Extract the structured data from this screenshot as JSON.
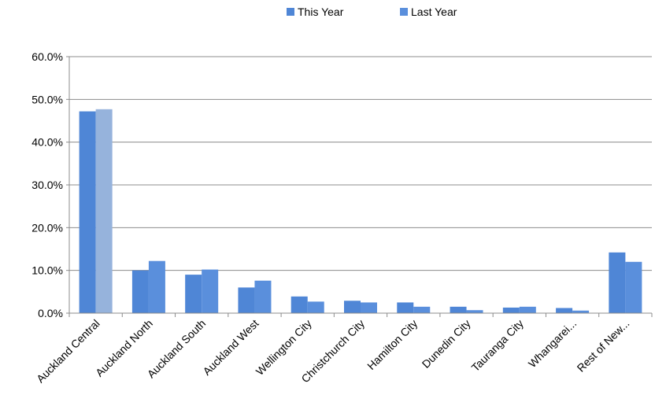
{
  "chart_data": {
    "type": "bar",
    "categories": [
      "Auckland Central",
      "Auckland North",
      "Auckland South",
      "Auckland West",
      "Wellington City",
      "Christchurch City",
      "Hamilton City",
      "Dunedin City",
      "Tauranga City",
      "Whangarei...",
      "Rest of New..."
    ],
    "series": [
      {
        "name": "This Year",
        "color": "#4f86d6",
        "values": [
          47.2,
          10.0,
          9.0,
          6.0,
          3.9,
          2.9,
          2.5,
          1.5,
          1.3,
          1.2,
          14.2
        ]
      },
      {
        "name": "Last Year",
        "color": "#5a8fdc",
        "values": [
          47.7,
          12.2,
          10.2,
          7.6,
          2.7,
          2.5,
          1.5,
          0.7,
          1.5,
          0.6,
          12.0
        ]
      }
    ],
    "highlight": {
      "category_index": 0,
      "series_index": 1,
      "color": "#96b3dc"
    },
    "ylim": [
      0,
      60
    ],
    "yticks": [
      "0.0%",
      "10.0%",
      "20.0%",
      "30.0%",
      "40.0%",
      "50.0%",
      "60.0%"
    ],
    "ytick_values": [
      0,
      10,
      20,
      30,
      40,
      50,
      60
    ],
    "grid": true,
    "legend_position": "top-center",
    "title": "",
    "xlabel": "",
    "ylabel": ""
  }
}
